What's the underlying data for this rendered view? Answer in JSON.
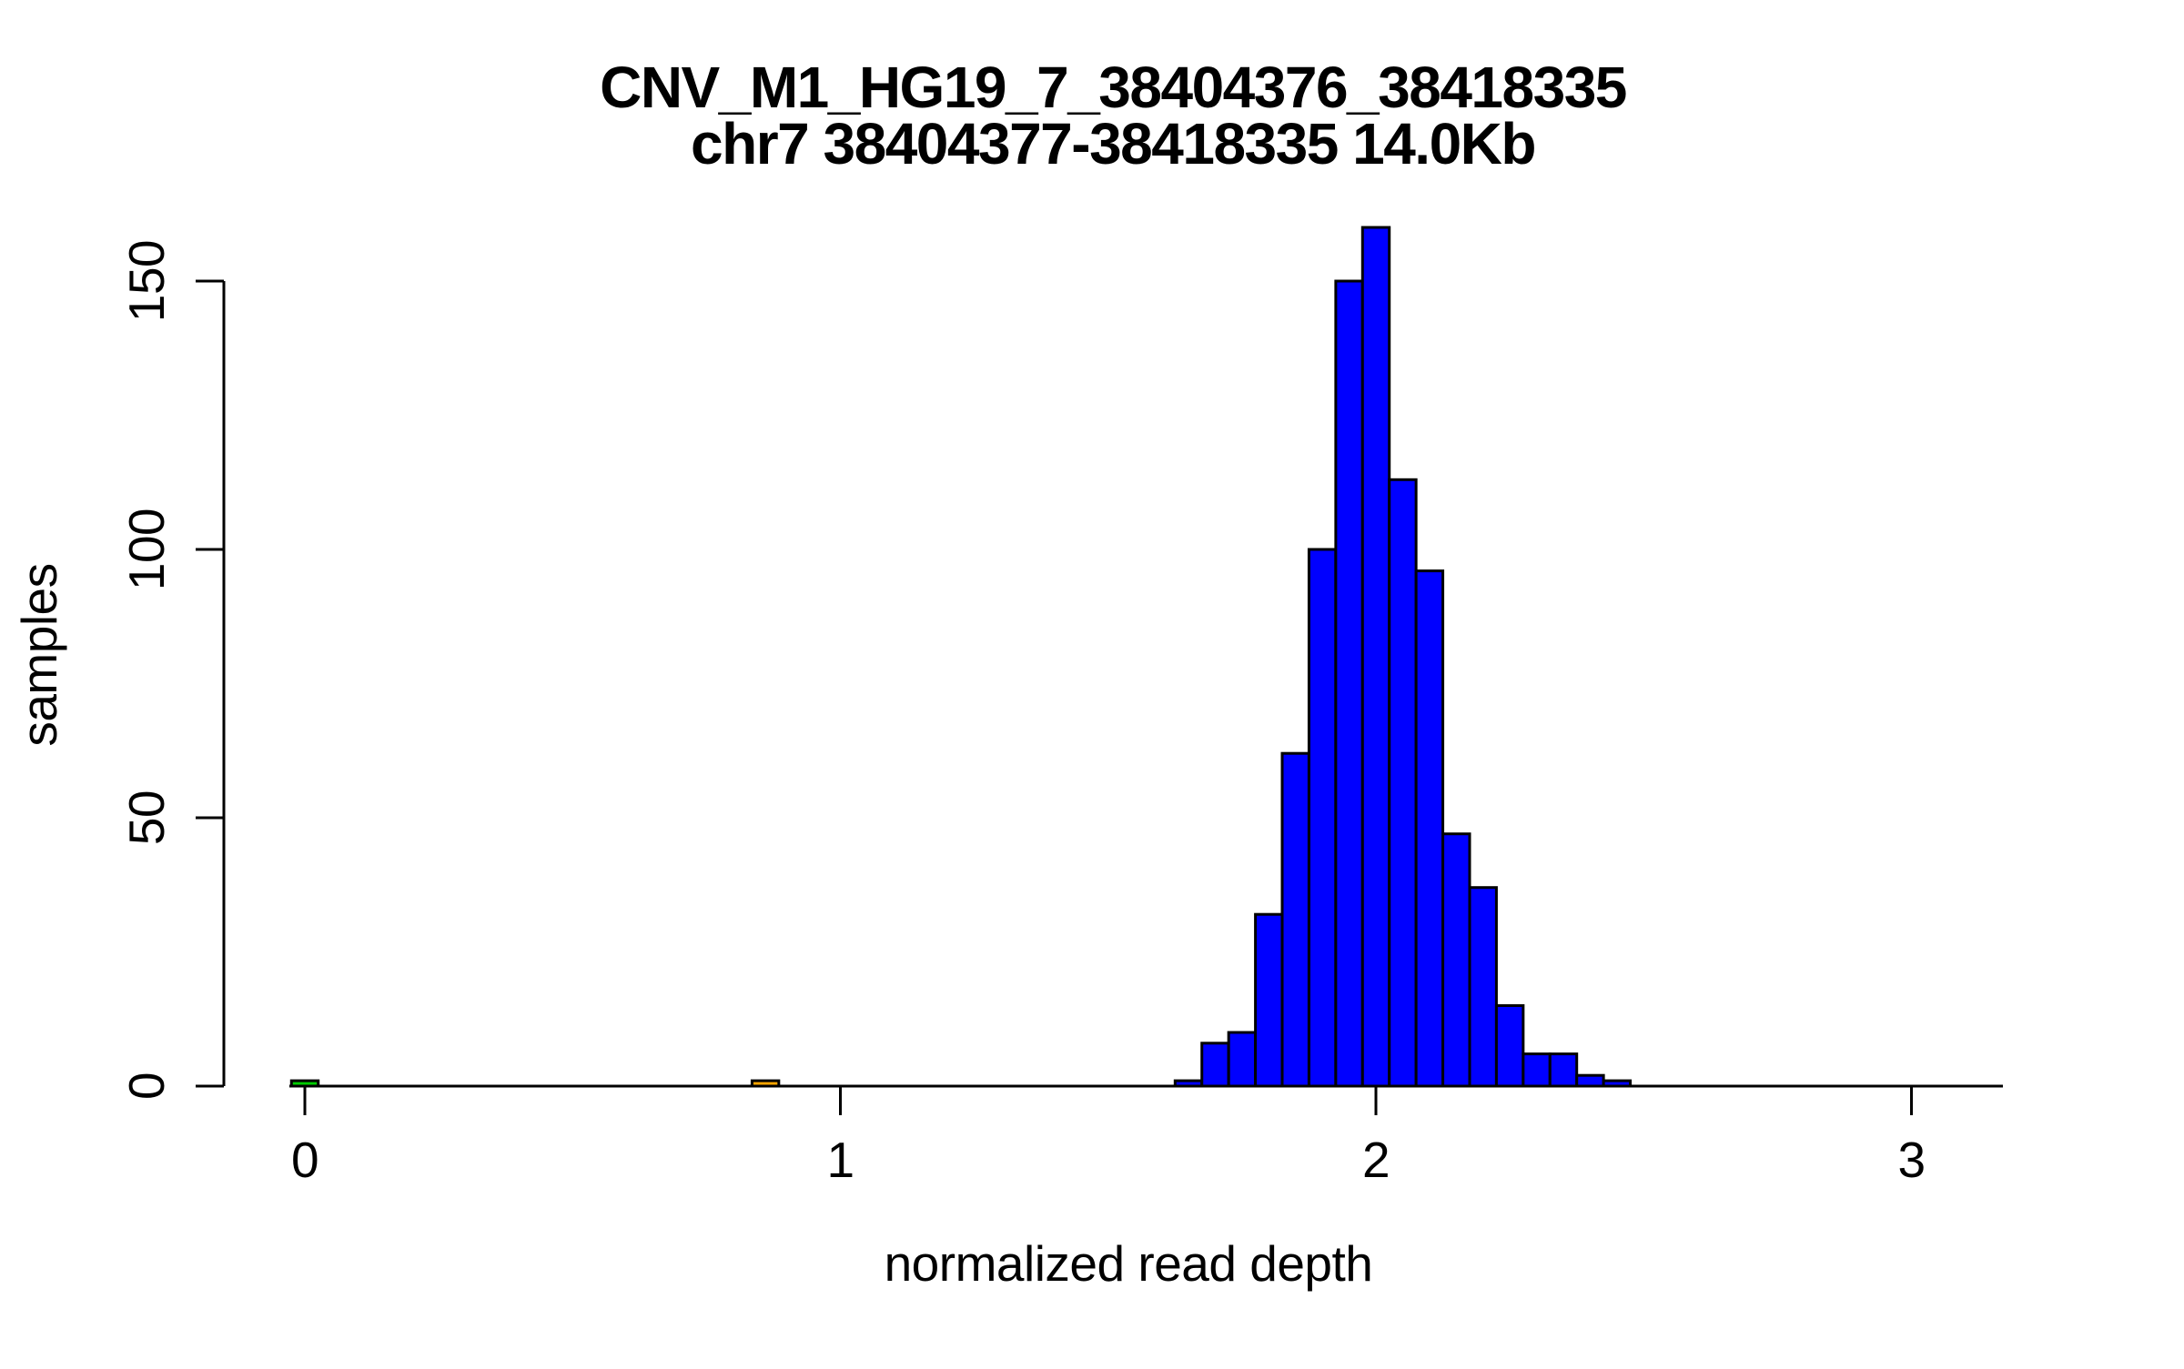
{
  "figure": {
    "title_line1": "CNV_M1_HG19_7_38404376_38418335",
    "title_line2": "chr7 38404377-38418335 14.0Kb",
    "xlabel": "normalized read depth",
    "ylabel": "samples"
  },
  "chart_data": {
    "type": "bar",
    "subtype": "histogram",
    "title": "CNV_M1_HG19_7_38404376_38418335",
    "subtitle": "chr7 38404377-38418335 14.0Kb",
    "xlabel": "normalized read depth",
    "ylabel": "samples",
    "x_ticks": [
      0,
      1,
      2,
      3
    ],
    "y_ticks": [
      0,
      50,
      100,
      150
    ],
    "xlim": [
      -0.15,
      3.2
    ],
    "ylim": [
      0,
      160
    ],
    "bin_width": 0.05,
    "grid": false,
    "legend": false,
    "series": [
      {
        "name": "main-distribution",
        "color": "#0000FF",
        "bin_centers": [
          1.65,
          1.7,
          1.75,
          1.8,
          1.85,
          1.9,
          1.95,
          2.0,
          2.05,
          2.1,
          2.15,
          2.2,
          2.25,
          2.3,
          2.35,
          2.4,
          2.45
        ],
        "counts": [
          1,
          8,
          10,
          32,
          62,
          100,
          150,
          160,
          113,
          96,
          47,
          37,
          15,
          6,
          6,
          2,
          1
        ]
      },
      {
        "name": "outlier-zero",
        "color": "#00CC00",
        "bin_centers": [
          0.0
        ],
        "counts": [
          1
        ]
      },
      {
        "name": "outlier-low",
        "color": "#FFA500",
        "bin_centers": [
          0.86
        ],
        "counts": [
          1
        ]
      }
    ],
    "annotations": []
  },
  "style": {
    "background": "#FFFFFF",
    "axis_color": "#000000",
    "text_color": "#000000",
    "bar_stroke": "#000000",
    "bar_fill_main": "#0000FF",
    "bar_fill_green": "#00CC00",
    "bar_fill_orange": "#FFA500"
  }
}
